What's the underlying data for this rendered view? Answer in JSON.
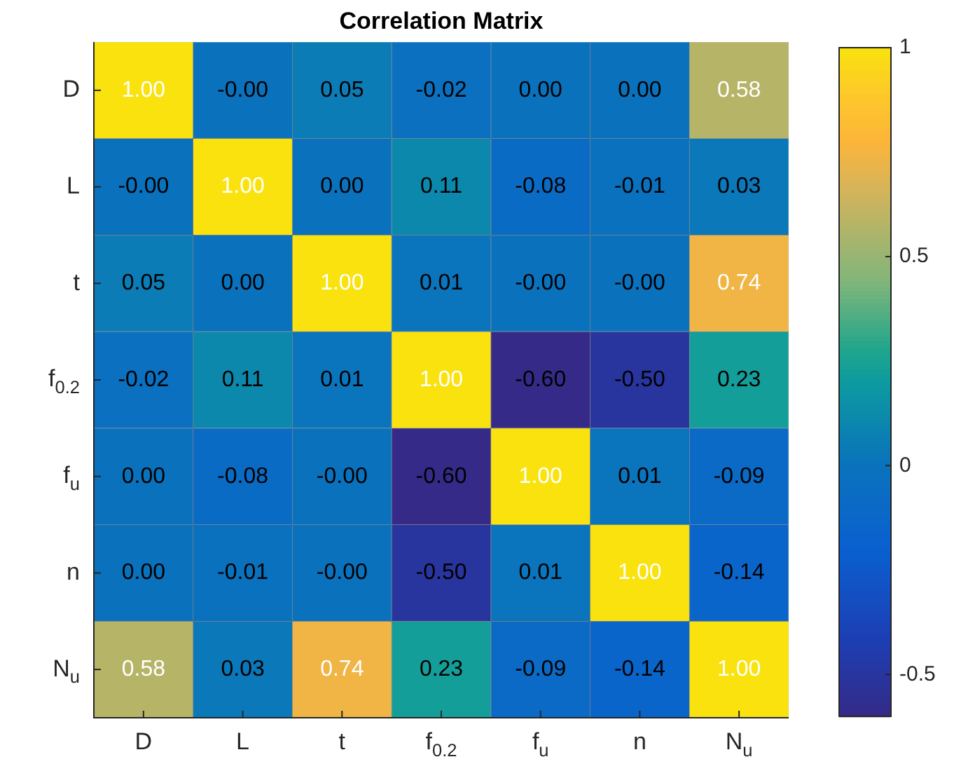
{
  "chart_data": {
    "type": "heatmap",
    "title": "Correlation Matrix",
    "categories": [
      "D",
      "L",
      "t",
      "f$_{0.2}$",
      "f$_{u}$",
      "n",
      "N$_{u}$"
    ],
    "y_categories": [
      "D",
      "L",
      "t",
      "f$_{0.2}$",
      "f$_{u}$",
      "n",
      "N$_{u}$"
    ],
    "cells": [
      [
        1.0,
        -0.0,
        0.05,
        -0.02,
        0.0,
        0.0,
        0.58
      ],
      [
        -0.0,
        1.0,
        0.0,
        0.11,
        -0.08,
        -0.01,
        0.03
      ],
      [
        0.05,
        0.0,
        1.0,
        0.01,
        -0.0,
        -0.0,
        0.74
      ],
      [
        -0.02,
        0.11,
        0.01,
        1.0,
        -0.6,
        -0.5,
        0.23
      ],
      [
        0.0,
        -0.08,
        -0.0,
        -0.6,
        1.0,
        0.01,
        -0.09
      ],
      [
        0.0,
        -0.01,
        -0.0,
        -0.5,
        0.01,
        1.0,
        -0.14
      ],
      [
        0.58,
        0.03,
        0.74,
        0.23,
        -0.09,
        -0.14,
        1.0
      ]
    ],
    "cell_labels": [
      [
        "1.00",
        "-0.00",
        "0.05",
        "-0.02",
        "0.00",
        "0.00",
        "0.58"
      ],
      [
        "-0.00",
        "1.00",
        "0.00",
        "0.11",
        "-0.08",
        "-0.01",
        "0.03"
      ],
      [
        "0.05",
        "0.00",
        "1.00",
        "0.01",
        "-0.00",
        "-0.00",
        "0.74"
      ],
      [
        "-0.02",
        "0.11",
        "0.01",
        "1.00",
        "-0.60",
        "-0.50",
        "0.23"
      ],
      [
        "0.00",
        "-0.08",
        "-0.00",
        "-0.60",
        "1.00",
        "0.01",
        "-0.09"
      ],
      [
        "0.00",
        "-0.01",
        "-0.00",
        "-0.50",
        "0.01",
        "1.00",
        "-0.14"
      ],
      [
        "0.58",
        "0.03",
        "0.74",
        "0.23",
        "-0.09",
        "-0.14",
        "1.00"
      ]
    ],
    "clim": [
      -0.6,
      1
    ],
    "cticks": [
      -0.5,
      0,
      0.5,
      1
    ]
  }
}
